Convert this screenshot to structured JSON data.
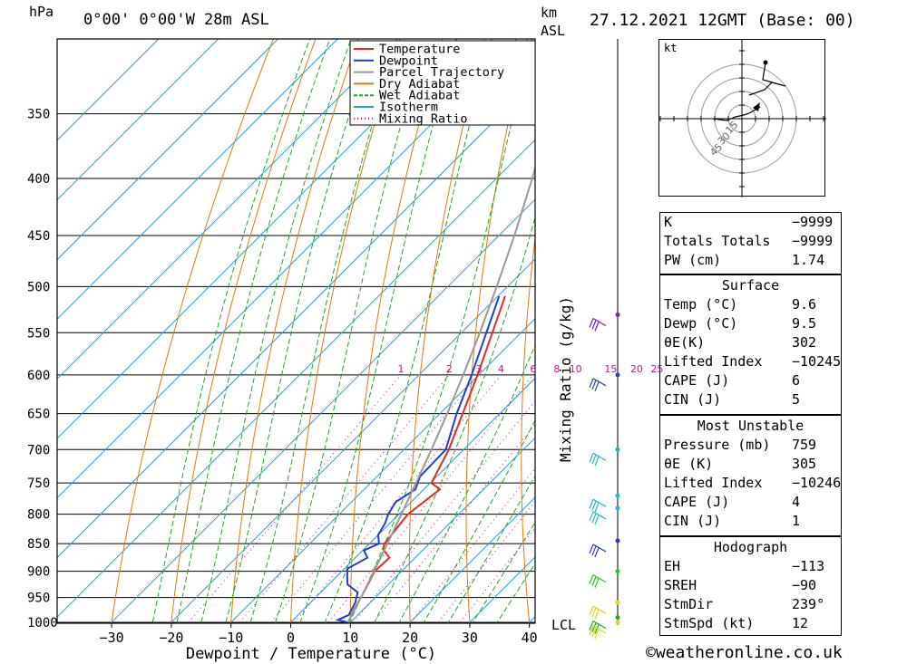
{
  "header": {
    "hpa_label": "hPa",
    "location": "0°00' 0°00'W 28m ASL",
    "km_label": "km",
    "asl_label": "ASL",
    "datetime": "27.12.2021 12GMT (Base: 00)"
  },
  "legend": [
    {
      "label": "Temperature",
      "color": "#e8281f",
      "style": "solid"
    },
    {
      "label": "Dewpoint",
      "color": "#1f3fd8",
      "style": "solid"
    },
    {
      "label": "Parcel Trajectory",
      "color": "#9a9a9a",
      "style": "solid"
    },
    {
      "label": "Dry Adiabat",
      "color": "#e07a10",
      "style": "solid"
    },
    {
      "label": "Wet Adiabat",
      "color": "#1fa81f",
      "style": "dashed"
    },
    {
      "label": "Isotherm",
      "color": "#1fa0e0",
      "style": "solid"
    },
    {
      "label": "Mixing Ratio",
      "color": "#c0178c",
      "style": "dotted"
    }
  ],
  "chart_data": {
    "type": "line",
    "subtype": "skew-T log-p diagram",
    "xlabel": "Dewpoint / Temperature (°C)",
    "ylabel": "hPa",
    "right_axis_label": "Mixing Ratio (g/kg)",
    "x_ticks": [
      -30,
      -20,
      -10,
      0,
      10,
      20,
      30,
      40
    ],
    "pressure_levels": [
      350,
      400,
      450,
      500,
      550,
      600,
      650,
      700,
      750,
      800,
      850,
      900,
      950,
      1000
    ],
    "mixing_ratio_labels": [
      "1",
      "2",
      "3",
      "4",
      "6",
      "8",
      "10",
      "15",
      "20",
      "25"
    ],
    "lcl_label": "LCL",
    "series": [
      {
        "name": "Temperature",
        "color": "#e8281f",
        "points": [
          [
            1000,
            9.6
          ],
          [
            975,
            8.5
          ],
          [
            950,
            7.6
          ],
          [
            925,
            6.6
          ],
          [
            900,
            5.5
          ],
          [
            875,
            5.7
          ],
          [
            860,
            3.2
          ],
          [
            850,
            2.5
          ],
          [
            800,
            1.5
          ],
          [
            760,
            2.7
          ],
          [
            750,
            0.2
          ],
          [
            700,
            -2.5
          ],
          [
            650,
            -6.2
          ],
          [
            600,
            -10.2
          ],
          [
            550,
            -14.8
          ],
          [
            510,
            -18.8
          ]
        ]
      },
      {
        "name": "Dewpoint",
        "color": "#1f3fd8",
        "points": [
          [
            1000,
            9.5
          ],
          [
            995,
            7.5
          ],
          [
            985,
            8.5
          ],
          [
            960,
            7.5
          ],
          [
            940,
            6.2
          ],
          [
            925,
            3.2
          ],
          [
            910,
            1.8
          ],
          [
            895,
            0.5
          ],
          [
            875,
            2.0
          ],
          [
            862,
            0.2
          ],
          [
            850,
            1.6
          ],
          [
            835,
            0.0
          ],
          [
            815,
            -0.8
          ],
          [
            800,
            -1.8
          ],
          [
            780,
            -2.6
          ],
          [
            760,
            -1.4
          ],
          [
            740,
            -2.8
          ],
          [
            700,
            -3.0
          ],
          [
            650,
            -7.2
          ],
          [
            600,
            -11.2
          ],
          [
            550,
            -15.8
          ],
          [
            510,
            -19.8
          ]
        ]
      },
      {
        "name": "Parcel Trajectory",
        "color": "#9a9a9a",
        "points": [
          [
            1000,
            9.6
          ],
          [
            950,
            7.6
          ],
          [
            900,
            5.4
          ],
          [
            850,
            3.0
          ],
          [
            800,
            0.4
          ],
          [
            750,
            -2.4
          ],
          [
            700,
            -5.4
          ],
          [
            650,
            -8.8
          ],
          [
            600,
            -12.6
          ],
          [
            550,
            -16.9
          ],
          [
            500,
            -21.8
          ],
          [
            450,
            -27.4
          ],
          [
            400,
            -34.0
          ],
          [
            350,
            -41.6
          ],
          [
            330,
            -45.0
          ]
        ]
      }
    ]
  },
  "hodograph": {
    "unit_label": "kt",
    "ring_labels": [
      "15",
      "30",
      "45"
    ]
  },
  "indices": {
    "top": [
      {
        "key": "K",
        "value": "-9999"
      },
      {
        "key": "Totals Totals",
        "value": "-9999"
      },
      {
        "key": "PW (cm)",
        "value": "1.74"
      }
    ],
    "surface_title": "Surface",
    "surface": [
      {
        "key": "Temp (°C)",
        "value": "9.6"
      },
      {
        "key": "Dewp (°C)",
        "value": "9.5"
      },
      {
        "key": "θE(K)",
        "value": "302"
      },
      {
        "key": "Lifted Index",
        "value": "-10245"
      },
      {
        "key": "CAPE (J)",
        "value": "6"
      },
      {
        "key": "CIN (J)",
        "value": "5"
      }
    ],
    "mu_title": "Most Unstable",
    "mu": [
      {
        "key": "Pressure (mb)",
        "value": "759"
      },
      {
        "key": "θE (K)",
        "value": "305"
      },
      {
        "key": "Lifted Index",
        "value": "-10246"
      },
      {
        "key": "CAPE (J)",
        "value": "4"
      },
      {
        "key": "CIN (J)",
        "value": "1"
      }
    ],
    "hodo_title": "Hodograph",
    "hodo": [
      {
        "key": "EH",
        "value": "-113"
      },
      {
        "key": "SREH",
        "value": "-90"
      },
      {
        "key": "StmDir",
        "value": "239°"
      },
      {
        "key": "StmSpd (kt)",
        "value": "12"
      }
    ]
  },
  "copyright": "©weatheronline.co.uk"
}
